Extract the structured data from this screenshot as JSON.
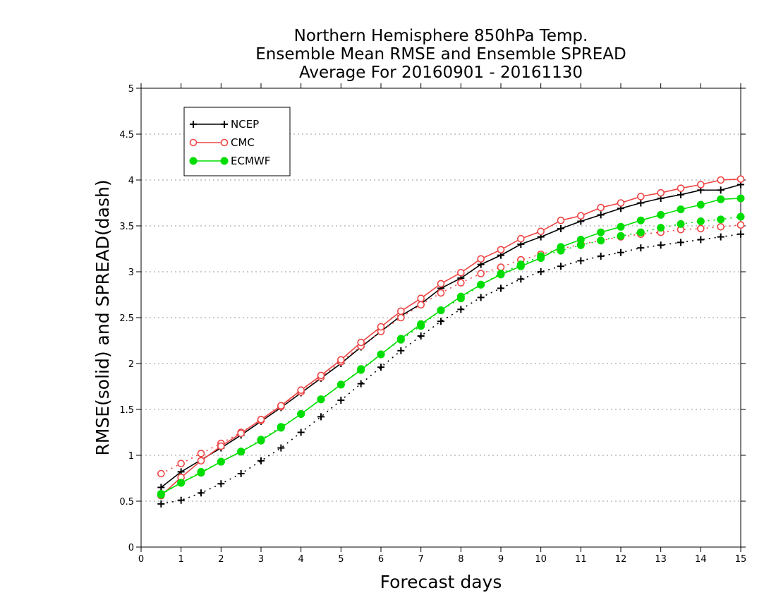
{
  "chart_data": {
    "type": "line",
    "title_lines": [
      "Northern Hemisphere 850hPa Temp.",
      "Ensemble Mean RMSE and Ensemble SPREAD",
      "Average For 20160901 - 20161130"
    ],
    "xlabel": "Forecast days",
    "ylabel": "RMSE(solid) and SPREAD(dash)",
    "xlim": [
      0,
      15
    ],
    "ylim": [
      0,
      5
    ],
    "xticks": [
      "0",
      "1",
      "2",
      "3",
      "4",
      "5",
      "6",
      "7",
      "8",
      "9",
      "10",
      "11",
      "12",
      "13",
      "14",
      "15"
    ],
    "yticks": [
      "0",
      "0.5",
      "1",
      "1.5",
      "2",
      "2.5",
      "3",
      "3.5",
      "4",
      "4.5",
      "5"
    ],
    "grid": "horizontal dotted",
    "legend_position": "top-left",
    "x": [
      0.5,
      1,
      1.5,
      2,
      2.5,
      3,
      3.5,
      4,
      4.5,
      5,
      5.5,
      6,
      6.5,
      7,
      7.5,
      8,
      8.5,
      9,
      9.5,
      10,
      10.5,
      11,
      11.5,
      12,
      12.5,
      13,
      13.5,
      14,
      14.5,
      15
    ],
    "series": [
      {
        "name": "NCEP",
        "color": "#000000",
        "marker": "plus",
        "rmse": [
          0.65,
          0.82,
          0.95,
          1.08,
          1.22,
          1.37,
          1.52,
          1.68,
          1.84,
          2.0,
          2.18,
          2.35,
          2.52,
          2.65,
          2.82,
          2.93,
          3.08,
          3.18,
          3.3,
          3.38,
          3.47,
          3.55,
          3.62,
          3.69,
          3.75,
          3.8,
          3.84,
          3.89,
          3.89,
          3.95
        ],
        "spread": [
          0.47,
          0.51,
          0.59,
          0.69,
          0.8,
          0.94,
          1.08,
          1.25,
          1.42,
          1.6,
          1.78,
          1.96,
          2.14,
          2.3,
          2.46,
          2.59,
          2.72,
          2.82,
          2.92,
          3.0,
          3.06,
          3.12,
          3.17,
          3.21,
          3.26,
          3.29,
          3.32,
          3.35,
          3.38,
          3.41
        ]
      },
      {
        "name": "CMC",
        "color": "#ee4444",
        "marker": "open-circle",
        "rmse": [
          0.56,
          0.76,
          0.94,
          1.1,
          1.24,
          1.39,
          1.54,
          1.71,
          1.87,
          2.04,
          2.23,
          2.4,
          2.57,
          2.71,
          2.87,
          2.99,
          3.14,
          3.24,
          3.36,
          3.44,
          3.56,
          3.61,
          3.7,
          3.75,
          3.82,
          3.86,
          3.91,
          3.95,
          4.0,
          4.01
        ],
        "spread": [
          0.8,
          0.91,
          1.02,
          1.13,
          1.25,
          1.38,
          1.53,
          1.69,
          1.85,
          2.02,
          2.19,
          2.35,
          2.5,
          2.64,
          2.77,
          2.88,
          2.98,
          3.05,
          3.13,
          3.19,
          3.25,
          3.3,
          3.34,
          3.38,
          3.41,
          3.43,
          3.46,
          3.47,
          3.49,
          3.51
        ]
      },
      {
        "name": "ECMWF",
        "color": "#00dd00",
        "marker": "filled-circle",
        "rmse": [
          0.58,
          0.7,
          0.81,
          0.93,
          1.04,
          1.16,
          1.3,
          1.45,
          1.61,
          1.77,
          1.93,
          2.1,
          2.27,
          2.43,
          2.58,
          2.73,
          2.86,
          2.97,
          3.06,
          3.15,
          3.27,
          3.35,
          3.43,
          3.49,
          3.56,
          3.62,
          3.68,
          3.73,
          3.79,
          3.8
        ],
        "spread": [
          0.57,
          0.7,
          0.82,
          0.93,
          1.04,
          1.17,
          1.31,
          1.45,
          1.61,
          1.77,
          1.94,
          2.1,
          2.26,
          2.41,
          2.58,
          2.71,
          2.86,
          2.98,
          3.08,
          3.17,
          3.23,
          3.29,
          3.34,
          3.39,
          3.43,
          3.48,
          3.52,
          3.55,
          3.57,
          3.6
        ]
      }
    ]
  }
}
